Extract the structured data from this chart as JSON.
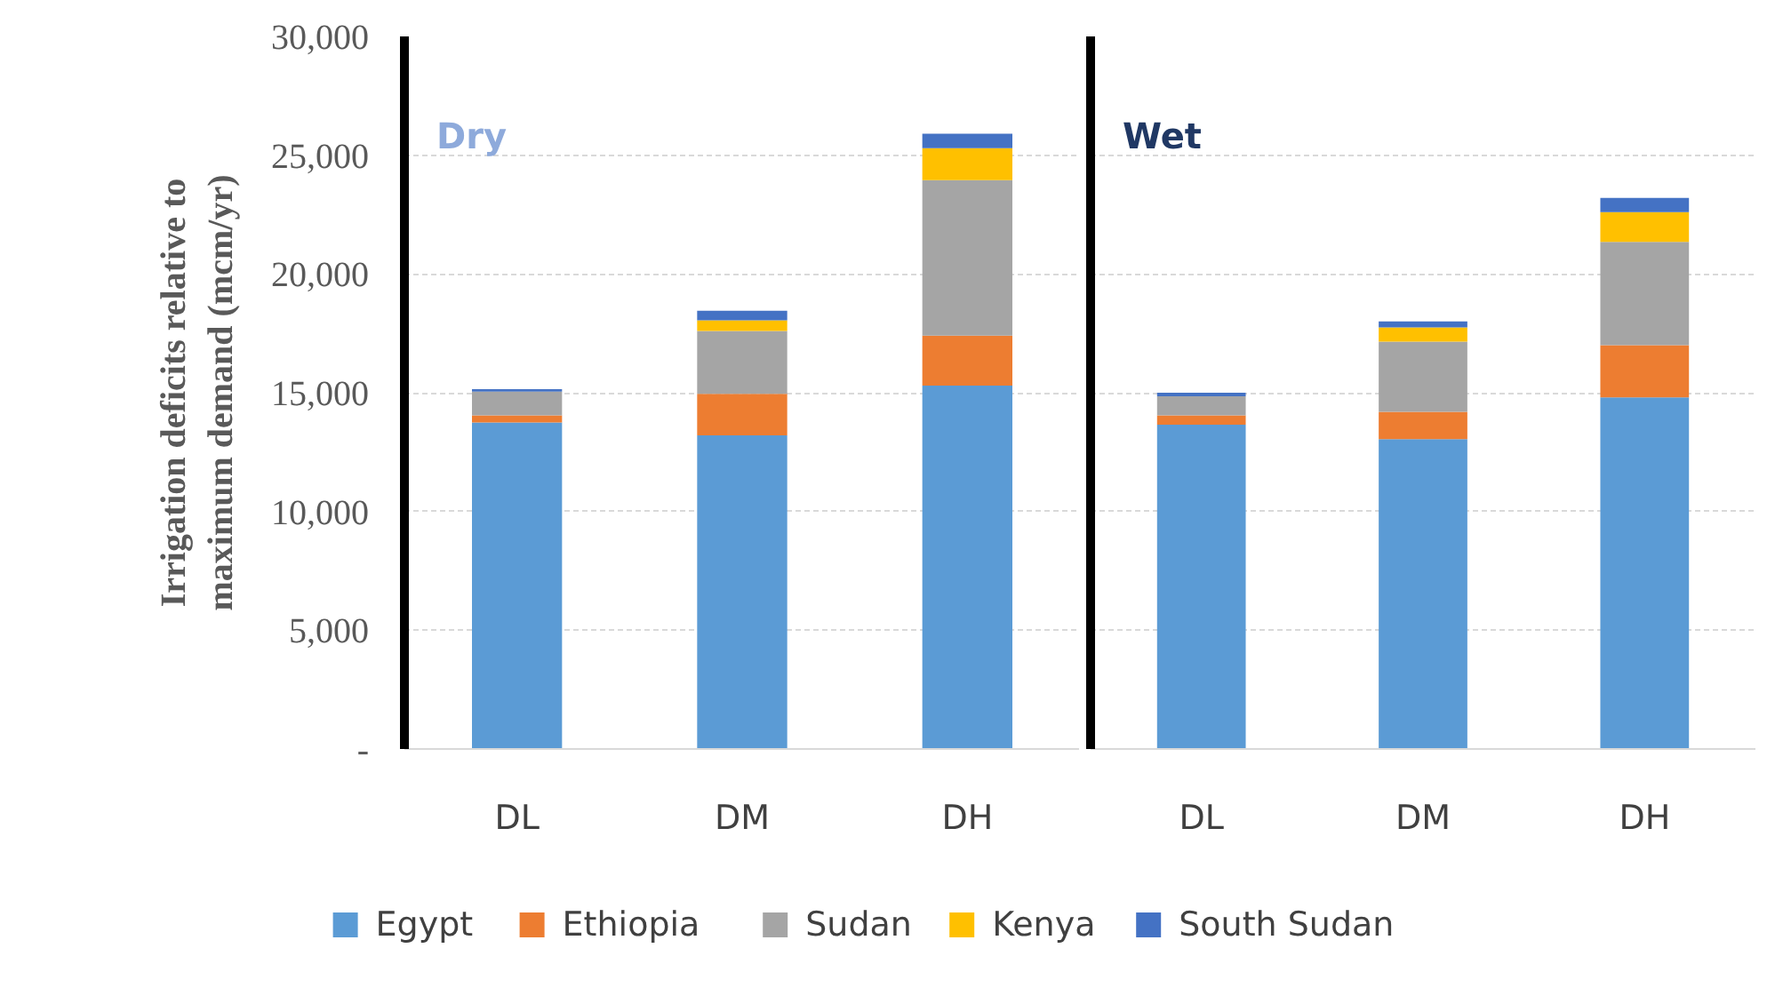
{
  "chart_data": [
    {
      "type": "bar",
      "title": "Dry",
      "ylabel": "Irrigation deficits relative to\nmaximum demand (mcm/yr)",
      "categories": [
        "DL",
        "DM",
        "DH"
      ],
      "stacked": true,
      "grid": "y",
      "legend": "bottom",
      "ylim": [
        0,
        30000
      ],
      "yticks": [
        {
          "value": 0,
          "label": "-"
        },
        {
          "value": 5000,
          "label": "5,000"
        },
        {
          "value": 10000,
          "label": "10,000"
        },
        {
          "value": 15000,
          "label": "15,000"
        },
        {
          "value": 20000,
          "label": "20,000"
        },
        {
          "value": 25000,
          "label": "25,000"
        },
        {
          "value": 30000,
          "label": "30,000"
        }
      ],
      "series": [
        {
          "name": "Egypt",
          "color": "#5b9bd5",
          "values": [
            13750,
            13200,
            15300
          ]
        },
        {
          "name": "Ethiopia",
          "color": "#ed7d31",
          "values": [
            300,
            1750,
            2100
          ]
        },
        {
          "name": "Sudan",
          "color": "#a5a5a5",
          "values": [
            1000,
            2650,
            6550
          ]
        },
        {
          "name": "Kenya",
          "color": "#ffc000",
          "values": [
            0,
            450,
            1350
          ]
        },
        {
          "name": "South Sudan",
          "color": "#4472c4",
          "values": [
            100,
            400,
            600
          ]
        }
      ]
    },
    {
      "type": "bar",
      "title": "Wet",
      "categories": [
        "DL",
        "DM",
        "DH"
      ],
      "stacked": true,
      "grid": "y",
      "tick_labels": "x",
      "ylim": [
        0,
        30000
      ],
      "yticks": [
        {
          "value": 0,
          "label": null
        },
        {
          "value": 5000,
          "label": null
        },
        {
          "value": 10000,
          "label": null
        },
        {
          "value": 15000,
          "label": null
        },
        {
          "value": 20000,
          "label": null
        },
        {
          "value": 25000,
          "label": null
        },
        {
          "value": 30000,
          "label": null
        }
      ],
      "series": [
        {
          "color": "#5b9bd5",
          "values": [
            13650,
            13050,
            14800
          ]
        },
        {
          "color": "#ed7d31",
          "values": [
            400,
            1150,
            2200
          ]
        },
        {
          "color": "#a5a5a5",
          "values": [
            800,
            2950,
            4350
          ]
        },
        {
          "color": "#ffc000",
          "values": [
            0,
            600,
            1250
          ]
        },
        {
          "color": "#4472c4",
          "values": [
            150,
            250,
            600
          ]
        }
      ]
    }
  ]
}
